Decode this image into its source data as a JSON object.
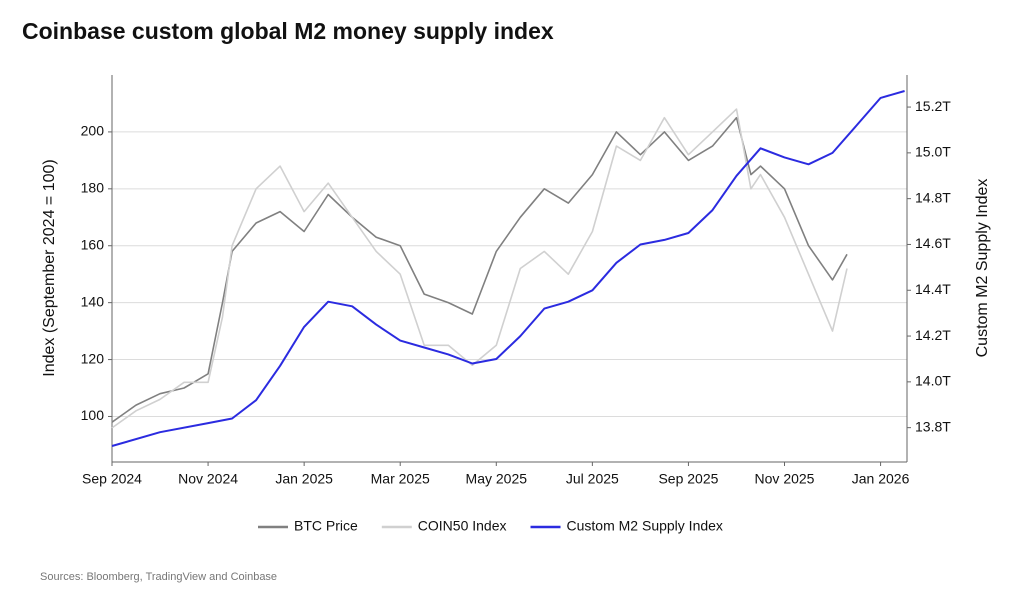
{
  "chart_data": {
    "type": "line",
    "title": "Coinbase custom global M2 money supply index",
    "ylabel": "Index (September 2024 = 100)",
    "y2label": "Custom M2 Supply Index",
    "source": "Sources: Bloomberg, TradingView and Coinbase",
    "xlim": [
      0,
      16.55
    ],
    "xticks": [
      {
        "value": 0,
        "label": "Sep 2024"
      },
      {
        "value": 2,
        "label": "Nov 2024"
      },
      {
        "value": 4,
        "label": "Jan 2025"
      },
      {
        "value": 6,
        "label": "Mar 2025"
      },
      {
        "value": 8,
        "label": "May 2025"
      },
      {
        "value": 10,
        "label": "Jul 2025"
      },
      {
        "value": 12,
        "label": "Sep 2025"
      },
      {
        "value": 14,
        "label": "Nov 2025"
      },
      {
        "value": 16,
        "label": "Jan 2026"
      }
    ],
    "ylim": [
      84,
      220
    ],
    "yticks": [
      100,
      120,
      140,
      160,
      180,
      200
    ],
    "y2lim": [
      13.65,
      15.34
    ],
    "y2ticks": [
      {
        "value": 13.8,
        "label": "13.8T"
      },
      {
        "value": 14.0,
        "label": "14.0T"
      },
      {
        "value": 14.2,
        "label": "14.2T"
      },
      {
        "value": 14.4,
        "label": "14.4T"
      },
      {
        "value": 14.6,
        "label": "14.6T"
      },
      {
        "value": 14.8,
        "label": "14.8T"
      },
      {
        "value": 15.0,
        "label": "15.0T"
      },
      {
        "value": 15.2,
        "label": "15.2T"
      }
    ],
    "grid": true,
    "legend": "bottom",
    "series": [
      {
        "name": "BTC Price",
        "color": "#808080",
        "x": [
          0,
          0.5,
          1,
          1.5,
          2,
          2.3,
          2.5,
          3,
          3.5,
          4,
          4.5,
          5,
          5.5,
          6,
          6.5,
          7,
          7.5,
          8,
          8.5,
          9,
          9.5,
          10,
          10.5,
          11,
          11.5,
          12,
          12.5,
          13,
          13.3,
          13.5,
          14,
          14.5,
          15,
          15.3
        ],
        "values": [
          98,
          104,
          108,
          110,
          115,
          140,
          158,
          168,
          172,
          165,
          178,
          170,
          163,
          160,
          143,
          140,
          136,
          158,
          170,
          180,
          175,
          185,
          200,
          192,
          200,
          190,
          195,
          205,
          185,
          188,
          180,
          160,
          148,
          157
        ]
      },
      {
        "name": "COIN50 Index",
        "color": "#d0d0d0",
        "x": [
          0,
          0.5,
          1,
          1.5,
          2,
          2.3,
          2.5,
          3,
          3.5,
          4,
          4.5,
          5,
          5.5,
          6,
          6.5,
          7,
          7.5,
          8,
          8.5,
          9,
          9.5,
          10,
          10.5,
          11,
          11.5,
          12,
          12.5,
          13,
          13.3,
          13.5,
          14,
          14.5,
          15,
          15.3
        ],
        "values": [
          96,
          102,
          106,
          112,
          112,
          135,
          160,
          180,
          188,
          172,
          182,
          170,
          158,
          150,
          125,
          125,
          118,
          125,
          152,
          158,
          150,
          165,
          195,
          190,
          205,
          192,
          200,
          208,
          180,
          185,
          170,
          150,
          130,
          152
        ]
      },
      {
        "name": "Custom M2 Supply Index",
        "color": "#2b2be0",
        "axis": "y2",
        "x": [
          0,
          1,
          2,
          2.5,
          3,
          3.5,
          4,
          4.5,
          5,
          5.5,
          6,
          6.5,
          7,
          7.5,
          8,
          8.5,
          9,
          9.5,
          10,
          10.5,
          11,
          11.5,
          12,
          12.5,
          13,
          13.5,
          14,
          14.5,
          15,
          15.5,
          16,
          16.5
        ],
        "values": [
          13.72,
          13.78,
          13.82,
          13.84,
          13.92,
          14.07,
          14.24,
          14.35,
          14.33,
          14.25,
          14.18,
          14.15,
          14.12,
          14.08,
          14.1,
          14.2,
          14.32,
          14.35,
          14.4,
          14.52,
          14.6,
          14.62,
          14.65,
          14.75,
          14.9,
          15.02,
          14.98,
          14.95,
          15.0,
          15.12,
          15.24,
          15.27
        ]
      }
    ]
  }
}
